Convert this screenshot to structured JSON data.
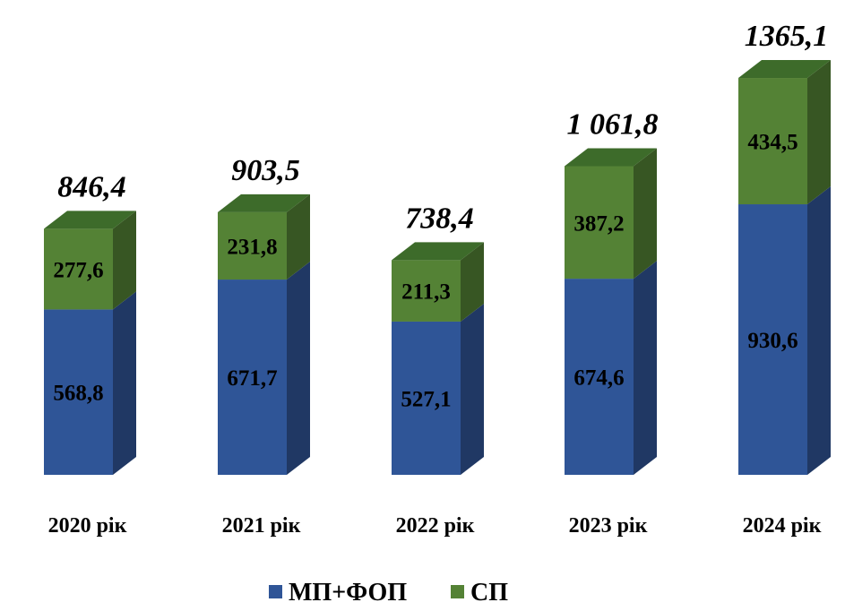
{
  "chart_data": {
    "type": "bar",
    "stacked": true,
    "style": "3d-column",
    "categories": [
      "2020 рік",
      "2021 рік",
      "2022 рік",
      "2023 рік",
      "2024 рік"
    ],
    "series": [
      {
        "name": "МП+ФОП",
        "values": [
          568.8,
          671.7,
          527.1,
          674.6,
          930.6
        ],
        "labels": [
          "568,8",
          "671,7",
          "527,1",
          "674,6",
          "930,6"
        ],
        "color": "#2f5597"
      },
      {
        "name": "СП",
        "values": [
          277.6,
          231.8,
          211.3,
          387.2,
          434.5
        ],
        "labels": [
          "277,6",
          "231,8",
          "211,3",
          "387,2",
          "434,5"
        ],
        "color": "#548235"
      }
    ],
    "totals": [
      "846,4",
      "903,5",
      "738,4",
      "1 061,8",
      "1365,1"
    ],
    "legend_position": "bottom",
    "grid": false
  }
}
